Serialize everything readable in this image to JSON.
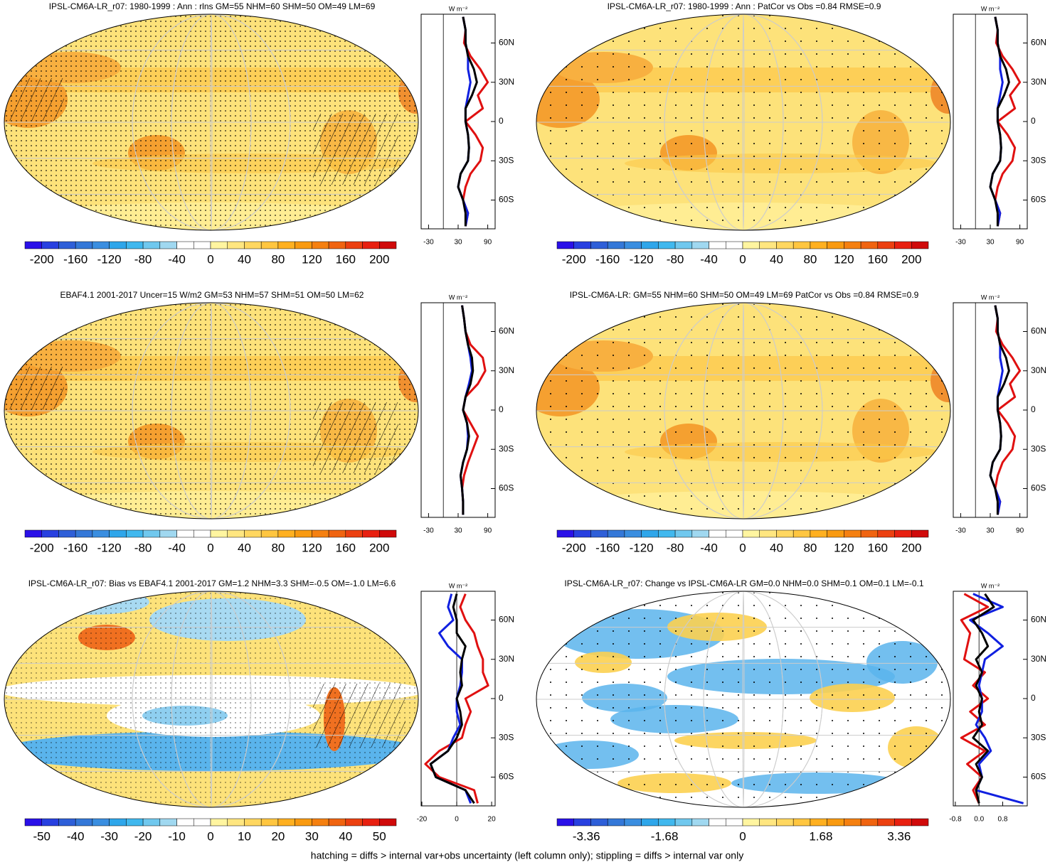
{
  "chart_data": [
    {
      "type": "line",
      "title": "IPSL-CM6A-LR_r07: 1980-1999 : Ann : rlns GM=55 NHM=60 SHM=50 OM=49 LM=69",
      "xlabel": "W m⁻²",
      "y": [
        80,
        70,
        60,
        50,
        40,
        30,
        20,
        10,
        0,
        -10,
        -20,
        -30,
        -40,
        -50,
        -60,
        -70,
        -80
      ],
      "ylim": [
        -82,
        82
      ],
      "yticks": [
        {
          "value": 60,
          "label": "60N"
        },
        {
          "value": 30,
          "label": "30N"
        },
        0,
        {
          "value": -30,
          "label": "30S"
        },
        {
          "value": -60,
          "label": "60S"
        }
      ],
      "xlim": [
        -45,
        105
      ],
      "xticks": [
        -30,
        30,
        90
      ],
      "series": [
        {
          "color": "#e01010",
          "values": [
            40,
            45,
            42,
            55,
            75,
            90,
            70,
            80,
            45,
            65,
            80,
            75,
            55,
            45,
            40,
            50,
            45
          ]
        },
        {
          "color": "#1020e0",
          "values": [
            40,
            45,
            45,
            50,
            50,
            55,
            50,
            45,
            45,
            50,
            52,
            50,
            35,
            30,
            40,
            50,
            45
          ]
        },
        {
          "color": "#000000",
          "values": [
            40,
            45,
            45,
            50,
            62,
            68,
            58,
            45,
            45,
            50,
            52,
            50,
            35,
            30,
            40,
            45,
            45
          ]
        }
      ],
      "colorbar": {
        "clim": [
          -220,
          220
        ],
        "colors": [
          "#2a10e8",
          "#2840e0",
          "#2e5fd8",
          "#3478d8",
          "#3a8ee0",
          "#2ea6ea",
          "#40b8ee",
          "#70c8ee",
          "#a0d8f0",
          "#ffffff",
          "#ffffff",
          "#fff5a0",
          "#ffe680",
          "#ffd760",
          "#ffc640",
          "#ffb020",
          "#f99a10",
          "#f58010",
          "#f06410",
          "#ec4010",
          "#e82010",
          "#d00a0a"
        ],
        "ticks": [
          -200,
          -160,
          -120,
          -80,
          -40,
          0,
          40,
          80,
          120,
          160,
          200
        ]
      }
    },
    {
      "type": "line",
      "title": "IPSL-CM6A-LR_r07: 1980-1999 : Ann : PatCor vs Obs =0.84 RMSE=0.9",
      "xlabel": "W m⁻²",
      "y": [
        80,
        70,
        60,
        50,
        40,
        30,
        20,
        10,
        0,
        -10,
        -20,
        -30,
        -40,
        -50,
        -60,
        -70,
        -80
      ],
      "ylim": [
        -82,
        82
      ],
      "yticks": [
        {
          "value": 60,
          "label": "60N"
        },
        {
          "value": 30,
          "label": "30N"
        },
        0,
        {
          "value": -30,
          "label": "30S"
        },
        {
          "value": -60,
          "label": "60S"
        }
      ],
      "xlim": [
        -45,
        105
      ],
      "xticks": [
        -30,
        30,
        90
      ],
      "series": [
        {
          "color": "#e01010",
          "values": [
            40,
            45,
            42,
            55,
            75,
            90,
            70,
            80,
            45,
            65,
            80,
            75,
            55,
            45,
            40,
            50,
            45
          ]
        },
        {
          "color": "#1020e0",
          "values": [
            40,
            45,
            45,
            50,
            50,
            55,
            50,
            45,
            45,
            50,
            52,
            50,
            35,
            30,
            40,
            50,
            45
          ]
        },
        {
          "color": "#000000",
          "values": [
            40,
            45,
            45,
            50,
            62,
            68,
            58,
            45,
            45,
            50,
            52,
            50,
            35,
            30,
            40,
            45,
            45
          ]
        }
      ],
      "colorbar": {
        "clim": [
          -220,
          220
        ],
        "colors": [
          "#2a10e8",
          "#2840e0",
          "#2e5fd8",
          "#3478d8",
          "#3a8ee0",
          "#2ea6ea",
          "#40b8ee",
          "#70c8ee",
          "#a0d8f0",
          "#ffffff",
          "#ffffff",
          "#fff5a0",
          "#ffe680",
          "#ffd760",
          "#ffc640",
          "#ffb020",
          "#f99a10",
          "#f58010",
          "#f06410",
          "#ec4010",
          "#e82010",
          "#d00a0a"
        ],
        "ticks": [
          -200,
          -160,
          -120,
          -80,
          -40,
          0,
          40,
          80,
          120,
          160,
          200
        ]
      }
    },
    {
      "type": "line",
      "title": "EBAF4.1 2001-2017 Uncer=15 W/m2 GM=53 NHM=57 SHM=51 OM=50 LM=62",
      "xlabel": "W m⁻²",
      "y": [
        80,
        70,
        60,
        50,
        40,
        30,
        20,
        10,
        0,
        -10,
        -20,
        -30,
        -40,
        -50,
        -60,
        -70,
        -80
      ],
      "ylim": [
        -82,
        82
      ],
      "yticks": [
        {
          "value": 60,
          "label": "60N"
        },
        {
          "value": 30,
          "label": "30N"
        },
        0,
        {
          "value": -30,
          "label": "30S"
        },
        {
          "value": -60,
          "label": "60S"
        }
      ],
      "xlim": [
        -45,
        105
      ],
      "xticks": [
        -30,
        30,
        90
      ],
      "series": [
        {
          "color": "#e01010",
          "values": [
            38,
            42,
            45,
            55,
            80,
            85,
            70,
            45,
            40,
            55,
            70,
            60,
            50,
            42,
            38,
            40,
            40
          ]
        },
        {
          "color": "#1020e0",
          "values": [
            38,
            42,
            45,
            50,
            55,
            58,
            52,
            45,
            40,
            48,
            50,
            48,
            40,
            35,
            38,
            40,
            40
          ]
        },
        {
          "color": "#000000",
          "values": [
            38,
            42,
            45,
            50,
            58,
            60,
            55,
            45,
            40,
            48,
            52,
            48,
            40,
            35,
            38,
            40,
            40
          ]
        }
      ],
      "colorbar": {
        "clim": [
          -220,
          220
        ],
        "colors": [
          "#2a10e8",
          "#2840e0",
          "#2e5fd8",
          "#3478d8",
          "#3a8ee0",
          "#2ea6ea",
          "#40b8ee",
          "#70c8ee",
          "#a0d8f0",
          "#ffffff",
          "#ffffff",
          "#fff5a0",
          "#ffe680",
          "#ffd760",
          "#ffc640",
          "#ffb020",
          "#f99a10",
          "#f58010",
          "#f06410",
          "#ec4010",
          "#e82010",
          "#d00a0a"
        ],
        "ticks": [
          -200,
          -160,
          -120,
          -80,
          -40,
          0,
          40,
          80,
          120,
          160,
          200
        ]
      }
    },
    {
      "type": "line",
      "title": "IPSL-CM6A-LR: GM=55 NHM=60 SHM=50 OM=49 LM=69 PatCor vs Obs =0.84 RMSE=0.9",
      "xlabel": "W m⁻²",
      "y": [
        80,
        70,
        60,
        50,
        40,
        30,
        20,
        10,
        0,
        -10,
        -20,
        -30,
        -40,
        -50,
        -60,
        -70,
        -80
      ],
      "ylim": [
        -82,
        82
      ],
      "yticks": [
        {
          "value": 60,
          "label": "60N"
        },
        {
          "value": 30,
          "label": "30N"
        },
        0,
        {
          "value": -30,
          "label": "30S"
        },
        {
          "value": -60,
          "label": "60S"
        }
      ],
      "xlim": [
        -45,
        105
      ],
      "xticks": [
        -30,
        30,
        90
      ],
      "series": [
        {
          "color": "#e01010",
          "values": [
            40,
            45,
            42,
            55,
            75,
            90,
            70,
            80,
            45,
            65,
            80,
            75,
            55,
            45,
            40,
            50,
            45
          ]
        },
        {
          "color": "#1020e0",
          "values": [
            40,
            45,
            45,
            50,
            50,
            55,
            50,
            45,
            45,
            50,
            52,
            50,
            35,
            30,
            40,
            50,
            45
          ]
        },
        {
          "color": "#000000",
          "values": [
            40,
            45,
            45,
            50,
            62,
            68,
            58,
            45,
            45,
            50,
            52,
            50,
            35,
            30,
            40,
            45,
            45
          ]
        }
      ],
      "colorbar": {
        "clim": [
          -220,
          220
        ],
        "colors": [
          "#2a10e8",
          "#2840e0",
          "#2e5fd8",
          "#3478d8",
          "#3a8ee0",
          "#2ea6ea",
          "#40b8ee",
          "#70c8ee",
          "#a0d8f0",
          "#ffffff",
          "#ffffff",
          "#fff5a0",
          "#ffe680",
          "#ffd760",
          "#ffc640",
          "#ffb020",
          "#f99a10",
          "#f58010",
          "#f06410",
          "#ec4010",
          "#e82010",
          "#d00a0a"
        ],
        "ticks": [
          -200,
          -160,
          -120,
          -80,
          -40,
          0,
          40,
          80,
          120,
          160,
          200
        ]
      }
    },
    {
      "type": "line",
      "title": "IPSL-CM6A-LR_r07: Bias vs EBAF4.1 2001-2017 GM=1.2 NHM=3.3 SHM=-0.5 OM=-1.0 LM=6.6",
      "xlabel": "W m⁻²",
      "y": [
        80,
        70,
        60,
        50,
        40,
        30,
        20,
        10,
        0,
        -10,
        -20,
        -30,
        -40,
        -50,
        -60,
        -70,
        -80
      ],
      "ylim": [
        -82,
        82
      ],
      "yticks": [
        {
          "value": 60,
          "label": "60N"
        },
        {
          "value": 30,
          "label": "30N"
        },
        0,
        {
          "value": -30,
          "label": "30S"
        },
        {
          "value": -60,
          "label": "60S"
        }
      ],
      "xlim": [
        -20.4,
        22
      ],
      "xticks": [
        -20,
        0,
        20
      ],
      "series": [
        {
          "color": "#e01010",
          "values": [
            5,
            2,
            5,
            10,
            12,
            15,
            15,
            18,
            5,
            8,
            5,
            3,
            -10,
            -18,
            -10,
            10,
            12
          ]
        },
        {
          "color": "#1020e0",
          "values": [
            -3,
            -5,
            -2,
            -10,
            -5,
            3,
            3,
            2,
            0,
            0,
            2,
            -2,
            -5,
            -15,
            -12,
            5,
            8
          ]
        },
        {
          "color": "#000000",
          "values": [
            0,
            -2,
            0,
            0,
            5,
            3,
            2,
            3,
            0,
            2,
            3,
            0,
            -5,
            -15,
            -12,
            5,
            10
          ]
        }
      ],
      "colorbar": {
        "clim": [
          -55,
          55
        ],
        "colors": [
          "#2a10e8",
          "#2840e0",
          "#2e5fd8",
          "#3478d8",
          "#3a8ee0",
          "#2ea6ea",
          "#40b8ee",
          "#70c8ee",
          "#a0d8f0",
          "#ffffff",
          "#ffffff",
          "#fff5a0",
          "#ffe680",
          "#ffd760",
          "#ffc640",
          "#ffb020",
          "#f99a10",
          "#f58010",
          "#f06410",
          "#ec4010",
          "#e82010",
          "#d00a0a"
        ],
        "ticks": [
          -50,
          -40,
          -30,
          -20,
          -10,
          0,
          10,
          20,
          30,
          40,
          50
        ]
      }
    },
    {
      "type": "line",
      "title": "IPSL-CM6A-LR_r07: Change vs IPSL-CM6A-LR GM=0.0 NHM=0.0 SHM=0.1 OM=0.1 LM=-0.1",
      "xlabel": "W m⁻²",
      "y": [
        80,
        70,
        60,
        50,
        40,
        30,
        20,
        10,
        0,
        -10,
        -20,
        -30,
        -40,
        -50,
        -60,
        -70,
        -80
      ],
      "ylim": [
        -82,
        82
      ],
      "yticks": [
        {
          "value": 60,
          "label": "60N"
        },
        {
          "value": 30,
          "label": "30N"
        },
        0,
        {
          "value": -30,
          "label": "30S"
        },
        {
          "value": -60,
          "label": "60S"
        }
      ],
      "xlim": [
        -0.87,
        1.63
      ],
      "xticks": [
        -0.8,
        {
          "value": 0,
          "label": "0.0"
        },
        0.8
      ],
      "series": [
        {
          "color": "#e01010",
          "values": [
            -0.5,
            0.3,
            -0.6,
            -0.3,
            -0.4,
            -0.5,
            0.2,
            -0.2,
            0.3,
            -0.3,
            0.2,
            -0.6,
            0.2,
            -0.4,
            0.1,
            -0.2,
            0.0
          ]
        },
        {
          "color": "#1020e0",
          "values": [
            -0.2,
            0.8,
            -0.3,
            0.3,
            0.8,
            0.2,
            0.1,
            0,
            0.1,
            0.1,
            -0.1,
            0.2,
            0.4,
            0,
            0.1,
            -0.1,
            1.5
          ]
        },
        {
          "color": "#000000",
          "values": [
            0.2,
            0.5,
            -0.2,
            0.1,
            0.3,
            -0.1,
            0.1,
            -0.1,
            0.1,
            0,
            0.1,
            -0.2,
            0.3,
            -0.1,
            0.1,
            -0.1,
            0.0
          ]
        }
      ],
      "colorbar": {
        "clim": [
          -3.99,
          3.99
        ],
        "colors": [
          "#2a10e8",
          "#2840e0",
          "#2e5fd8",
          "#3478d8",
          "#3a8ee0",
          "#2ea6ea",
          "#40b8ee",
          "#70c8ee",
          "#a0d8f0",
          "#ffffff",
          "#ffffff",
          "#fff5a0",
          "#ffe680",
          "#ffd760",
          "#ffc640",
          "#ffb020",
          "#f99a10",
          "#f58010",
          "#f06410",
          "#ec4010",
          "#e82010",
          "#d00a0a"
        ],
        "ticks": [
          -3.36,
          -1.68,
          0,
          1.68,
          3.36
        ]
      }
    }
  ],
  "footer": "hatching = diffs > internal var+obs uncertainty (left column only); stippling = diffs > internal var only"
}
